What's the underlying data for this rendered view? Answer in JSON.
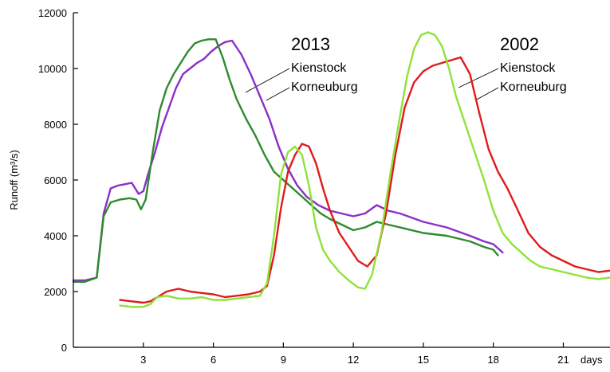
{
  "chart_data": {
    "type": "line",
    "title": "",
    "xlabel": "days",
    "ylabel": "Runoff (m³/s)",
    "xlim": [
      0,
      23
    ],
    "ylim": [
      0,
      12000
    ],
    "xticks": [
      3,
      6,
      9,
      12,
      15,
      18,
      21
    ],
    "yticks": [
      0,
      2000,
      4000,
      6000,
      8000,
      10000,
      12000
    ],
    "grid": false,
    "legend": [
      {
        "year": "2013",
        "stations": [
          "Kienstock",
          "Korneuburg"
        ]
      },
      {
        "year": "2002",
        "stations": [
          "Kienstock",
          "Korneuburg"
        ]
      }
    ],
    "series": [
      {
        "name": "Kienstock",
        "year": "2013",
        "color": "#8b2fc9",
        "x": [
          0,
          0.5,
          1.0,
          1.3,
          1.6,
          1.9,
          2.2,
          2.5,
          2.8,
          3.0,
          3.2,
          3.5,
          3.8,
          4.1,
          4.4,
          4.7,
          5.0,
          5.3,
          5.6,
          5.9,
          6.2,
          6.5,
          6.8,
          7.2,
          7.6,
          8.0,
          8.4,
          8.8,
          9.2,
          9.6,
          10.0,
          10.5,
          11.0,
          11.5,
          12.0,
          12.5,
          13.0,
          13.5,
          14.0,
          15.0,
          16.0,
          17.0,
          17.6,
          18.0,
          18.4
        ],
        "y": [
          2400,
          2400,
          2500,
          4800,
          5700,
          5800,
          5850,
          5900,
          5500,
          5600,
          6200,
          7000,
          7900,
          8600,
          9300,
          9800,
          10000,
          10200,
          10350,
          10600,
          10800,
          10950,
          11000,
          10500,
          9800,
          9000,
          8200,
          7200,
          6400,
          5800,
          5400,
          5100,
          4900,
          4800,
          4700,
          4800,
          5100,
          4900,
          4800,
          4500,
          4300,
          4000,
          3800,
          3700,
          3400
        ]
      },
      {
        "name": "Korneuburg",
        "year": "2013",
        "color": "#2e8b2e",
        "x": [
          0,
          0.5,
          1.0,
          1.3,
          1.6,
          2.0,
          2.4,
          2.7,
          2.9,
          3.1,
          3.4,
          3.7,
          4.0,
          4.3,
          4.6,
          4.9,
          5.2,
          5.5,
          5.8,
          6.1,
          6.4,
          6.7,
          7.0,
          7.4,
          7.8,
          8.2,
          8.6,
          9.0,
          9.4,
          9.8,
          10.2,
          10.6,
          11.0,
          11.5,
          12.0,
          12.5,
          13.0,
          13.5,
          14.0,
          15.0,
          16.0,
          17.0,
          17.6,
          18.0,
          18.2
        ],
        "y": [
          2350,
          2350,
          2500,
          4700,
          5200,
          5300,
          5350,
          5300,
          4950,
          5300,
          7000,
          8500,
          9300,
          9800,
          10200,
          10600,
          10900,
          11000,
          11050,
          11050,
          10400,
          9600,
          8900,
          8200,
          7600,
          6900,
          6300,
          6000,
          5700,
          5400,
          5100,
          4800,
          4600,
          4400,
          4200,
          4300,
          4500,
          4400,
          4300,
          4100,
          4000,
          3800,
          3600,
          3500,
          3300
        ]
      },
      {
        "name": "Kienstock",
        "year": "2002",
        "color": "#e01b1b",
        "x": [
          2.0,
          2.5,
          3.0,
          3.3,
          3.6,
          4.0,
          4.5,
          5.0,
          5.5,
          6.0,
          6.5,
          7.0,
          7.5,
          8.0,
          8.3,
          8.6,
          8.9,
          9.2,
          9.5,
          9.8,
          10.1,
          10.4,
          10.7,
          11.0,
          11.4,
          11.8,
          12.2,
          12.6,
          13.0,
          13.4,
          13.8,
          14.2,
          14.6,
          15.0,
          15.4,
          15.8,
          16.2,
          16.6,
          17.0,
          17.4,
          17.8,
          18.2,
          18.6,
          19.0,
          19.5,
          20.0,
          20.5,
          21.0,
          21.5,
          22.0,
          22.5,
          23.0
        ],
        "y": [
          1700,
          1650,
          1600,
          1650,
          1800,
          2000,
          2100,
          2000,
          1950,
          1900,
          1800,
          1850,
          1900,
          2000,
          2200,
          3300,
          5000,
          6300,
          6900,
          7300,
          7200,
          6600,
          5700,
          4900,
          4100,
          3600,
          3100,
          2900,
          3300,
          4800,
          6900,
          8600,
          9500,
          9900,
          10100,
          10200,
          10300,
          10400,
          9800,
          8400,
          7100,
          6300,
          5700,
          5000,
          4100,
          3600,
          3300,
          3100,
          2900,
          2800,
          2700,
          2750
        ]
      },
      {
        "name": "Korneuburg",
        "year": "2002",
        "color": "#8ee33a",
        "x": [
          2.0,
          2.5,
          3.0,
          3.3,
          3.6,
          4.0,
          4.5,
          5.0,
          5.5,
          6.0,
          6.5,
          7.0,
          7.5,
          8.0,
          8.3,
          8.6,
          8.9,
          9.2,
          9.5,
          9.8,
          10.1,
          10.4,
          10.7,
          11.0,
          11.4,
          11.8,
          12.2,
          12.5,
          12.8,
          13.2,
          13.6,
          14.0,
          14.3,
          14.6,
          14.9,
          15.2,
          15.5,
          15.8,
          16.1,
          16.4,
          16.8,
          17.2,
          17.6,
          18.0,
          18.4,
          18.8,
          19.2,
          19.6,
          20.0,
          20.5,
          21.0,
          21.5,
          22.0,
          22.5,
          23.0
        ],
        "y": [
          1500,
          1450,
          1450,
          1550,
          1800,
          1850,
          1750,
          1750,
          1800,
          1700,
          1700,
          1750,
          1800,
          1850,
          2300,
          4000,
          6200,
          7000,
          7200,
          6900,
          5800,
          4300,
          3500,
          3100,
          2700,
          2400,
          2150,
          2100,
          2600,
          4100,
          6300,
          8300,
          9700,
          10700,
          11200,
          11300,
          11200,
          10800,
          10000,
          9000,
          8000,
          7000,
          6000,
          4900,
          4100,
          3700,
          3400,
          3100,
          2900,
          2800,
          2700,
          2600,
          2500,
          2450,
          2500
        ]
      }
    ]
  }
}
